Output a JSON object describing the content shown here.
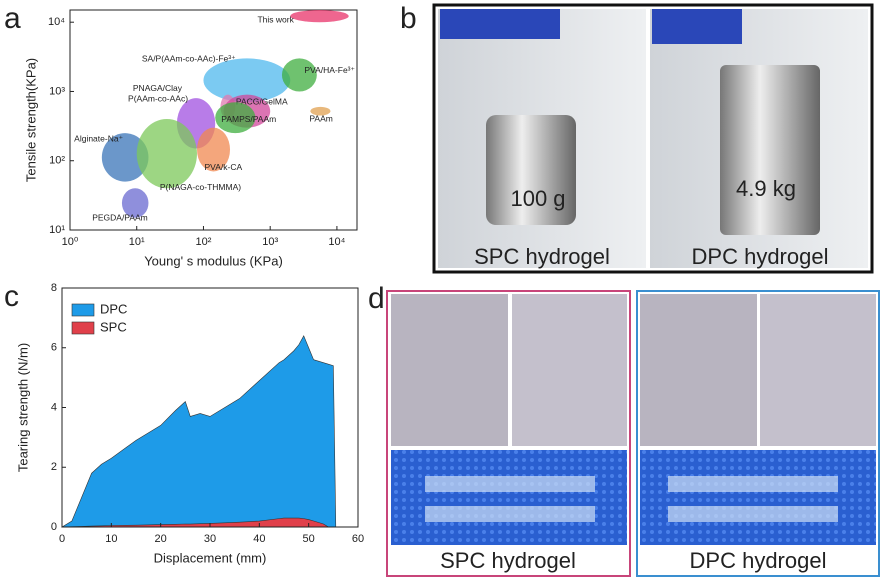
{
  "panel_labels": [
    "a",
    "b",
    "c",
    "d"
  ],
  "chart_data": [
    {
      "type": "region",
      "xlabel": "Young' s modulus (KPa)",
      "ylabel": "Tensile strength(KPa)",
      "log_x": true,
      "log_y": true,
      "xlim": [
        1,
        20000
      ],
      "ylim": [
        10,
        15000
      ],
      "xticks": [
        {
          "value": 1,
          "label": "10⁰"
        },
        {
          "value": 10,
          "label": "10¹"
        },
        {
          "value": 100,
          "label": "10²"
        },
        {
          "value": 1000,
          "label": "10³"
        },
        {
          "value": 10000,
          "label": "10⁴"
        }
      ],
      "yticks": [
        {
          "value": 10,
          "label": "10¹"
        },
        {
          "value": 100,
          "label": "10²"
        },
        {
          "value": 1000,
          "label": "10³"
        },
        {
          "value": 10000,
          "label": "10⁴"
        }
      ],
      "regions": [
        {
          "name": "This work",
          "color": "#e8336a",
          "x": [
            2000,
            15000
          ],
          "y": [
            10000,
            15000
          ]
        },
        {
          "name": "SA/P(AAm-co-AAc)-Fe³⁺",
          "color": "#4fb8ee",
          "x": [
            100,
            2000
          ],
          "y": [
            700,
            3000
          ]
        },
        {
          "name": "PVA/HA-Fe³⁺",
          "color": "#3fae3f",
          "x": [
            1500,
            5000
          ],
          "y": [
            1000,
            3000
          ]
        },
        {
          "name": "PNAGA/Clay",
          "color": "#e07ab0",
          "x": [
            180,
            300
          ],
          "y": [
            400,
            900
          ]
        },
        {
          "name": "PACG/GelMA",
          "color": "#d0459a",
          "x": [
            200,
            1000
          ],
          "y": [
            300,
            900
          ]
        },
        {
          "name": "PAMPS/PAAm",
          "color": "#3fae3f",
          "x": [
            150,
            600
          ],
          "y": [
            250,
            700
          ]
        },
        {
          "name": "PAAm",
          "color": "#e0a050",
          "x": [
            4000,
            8000
          ],
          "y": [
            450,
            600
          ]
        },
        {
          "name": "P(AAm-co-AAc)",
          "color": "#a050e0",
          "x": [
            40,
            150
          ],
          "y": [
            150,
            800
          ]
        },
        {
          "name": "Alginate-Na⁺",
          "color": "#3a74b8",
          "x": [
            3,
            15
          ],
          "y": [
            50,
            250
          ]
        },
        {
          "name": "PVA/k-CA",
          "color": "#f08850",
          "x": [
            80,
            250
          ],
          "y": [
            70,
            300
          ]
        },
        {
          "name": "P(NAGA-co-THMMA)",
          "color": "#7cc85a",
          "x": [
            10,
            80
          ],
          "y": [
            40,
            400
          ]
        },
        {
          "name": "PEGDA/PAAm",
          "color": "#6a6ad0",
          "x": [
            6,
            15
          ],
          "y": [
            15,
            40
          ]
        }
      ]
    },
    {
      "type": "area",
      "xlabel": "Displacement (mm)",
      "ylabel": "Tearing strength (N/m)",
      "xlim": [
        0,
        60
      ],
      "ylim": [
        0,
        8
      ],
      "xticks": [
        0,
        10,
        20,
        30,
        40,
        50,
        60
      ],
      "yticks": [
        0,
        2,
        4,
        6,
        8
      ],
      "legend": "top-left",
      "x": [
        0,
        2,
        4,
        6,
        8,
        10,
        15,
        20,
        23,
        25,
        26,
        28,
        30,
        33,
        36,
        40,
        44,
        45,
        47,
        48,
        49,
        50,
        51,
        53,
        54,
        55,
        55.5
      ],
      "series": [
        {
          "name": "DPC",
          "color": "#1e9be8",
          "values": [
            0,
            0.2,
            1,
            1.8,
            2.1,
            2.3,
            2.9,
            3.4,
            3.9,
            4.2,
            3.7,
            3.8,
            3.7,
            4.0,
            4.3,
            4.9,
            5.5,
            5.6,
            5.9,
            6.1,
            6.4,
            6.0,
            5.6,
            5.5,
            5.45,
            5.4,
            0
          ]
        },
        {
          "name": "SPC",
          "color": "#e0404a",
          "values": [
            0,
            0.01,
            0.02,
            0.03,
            0.04,
            0.05,
            0.06,
            0.08,
            0.09,
            0.1,
            0.1,
            0.11,
            0.12,
            0.14,
            0.16,
            0.2,
            0.28,
            0.3,
            0.3,
            0.3,
            0.28,
            0.25,
            0.2,
            0.1,
            0,
            null,
            null
          ]
        }
      ]
    }
  ],
  "photo_b": {
    "weights": [
      "100 g",
      "4.9 kg"
    ],
    "captions": [
      "SPC hydrogel",
      "DPC hydrogel"
    ]
  },
  "photo_d": {
    "captions": [
      "SPC hydrogel",
      "DPC hydrogel"
    ]
  }
}
